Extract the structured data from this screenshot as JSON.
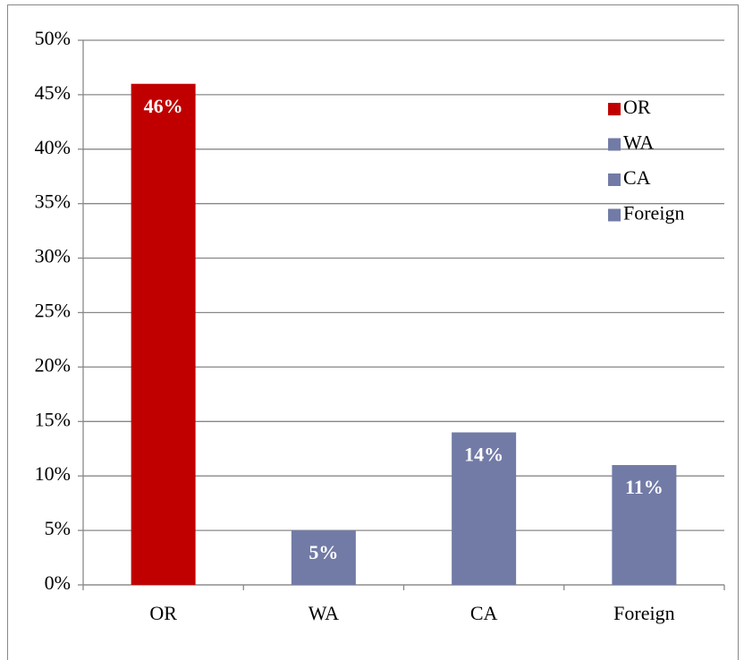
{
  "chart_data": {
    "type": "bar",
    "categories": [
      "OR",
      "WA",
      "CA",
      "Foreign"
    ],
    "values": [
      46,
      5,
      14,
      11
    ],
    "value_labels": [
      "46%",
      "5%",
      "14%",
      "11%"
    ],
    "colors": [
      "#c00000",
      "#727ba6",
      "#727ba6",
      "#727ba6"
    ],
    "ylim": [
      0,
      50
    ],
    "yticks": [
      {
        "value": 0,
        "label": "0%"
      },
      {
        "value": 5,
        "label": "5%"
      },
      {
        "value": 10,
        "label": "10%"
      },
      {
        "value": 15,
        "label": "15%"
      },
      {
        "value": 20,
        "label": "20%"
      },
      {
        "value": 25,
        "label": "25%"
      },
      {
        "value": 30,
        "label": "30%"
      },
      {
        "value": 35,
        "label": "35%"
      },
      {
        "value": 40,
        "label": "40%"
      },
      {
        "value": 45,
        "label": "45%"
      },
      {
        "value": 50,
        "label": "50%"
      }
    ],
    "grid": true,
    "legend": "top-right"
  }
}
